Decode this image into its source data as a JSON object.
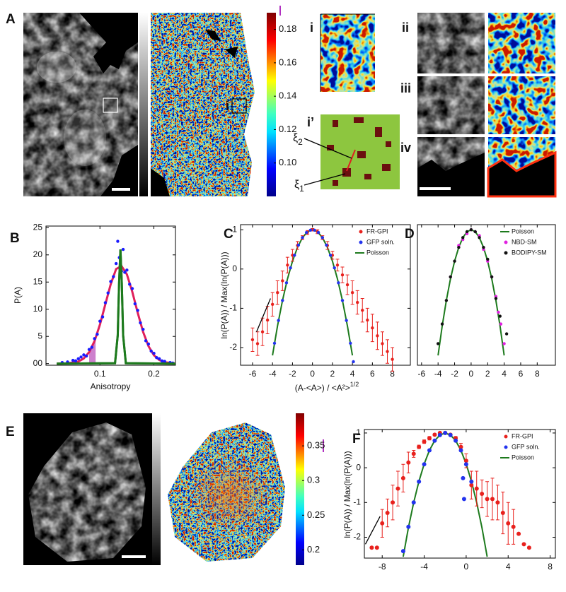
{
  "figure": {
    "panel_A": {
      "label": "A",
      "roi_label": "i",
      "scale_lim": [
        0.08,
        0.19
      ],
      "scale_ticks": [
        0.18,
        0.16,
        0.14,
        0.12,
        {
          "value": 0.1,
          "label": "0.10"
        }
      ],
      "insets": {
        "i": "i",
        "i_prime": "i’",
        "ii": "ii",
        "iii": "iii",
        "iv": "iv"
      },
      "xi_labels": [
        {
          "symbol": "ξ",
          "subscript": "2"
        },
        {
          "symbol": "ξ",
          "subscript": "1"
        }
      ]
    },
    "panel_E": {
      "label": "E",
      "scale_lim": [
        0.178,
        0.397
      ],
      "scale_ticks": [
        0.35,
        0.3,
        0.25,
        0.2
      ]
    }
  },
  "chart_data": [
    {
      "panel_label": "B",
      "type": "scatter",
      "xlabel": "Anisotropy",
      "ylabel": "P(A)",
      "xlim": [
        0,
        0.24
      ],
      "ylim": [
        -0.3,
        25.3
      ],
      "xticks": [
        0.1,
        0.2
      ],
      "yticks": [
        {
          "value": 0,
          "label": "00"
        },
        5,
        10,
        15,
        20,
        25
      ],
      "series": [
        {
          "type": "scatter",
          "color": "#1a1aff",
          "x": [
            0.03,
            0.04,
            0.05,
            0.055,
            0.06,
            0.065,
            0.07,
            0.075,
            0.08,
            0.085,
            0.09,
            0.095,
            0.1,
            0.105,
            0.11,
            0.115,
            0.12,
            0.125,
            0.13,
            0.133,
            0.136,
            0.14,
            0.143,
            0.146,
            0.15,
            0.155,
            0.16,
            0.165,
            0.17,
            0.175,
            0.18,
            0.185,
            0.19,
            0.195,
            0.2,
            0.205,
            0.21,
            0.215,
            0.22,
            0.23,
            0.235
          ],
          "values": [
            0.2,
            0.3,
            0.6,
            0.5,
            0.9,
            1.2,
            1.6,
            1.4,
            2.6,
            3.0,
            4.6,
            5.4,
            7.8,
            8.6,
            11.2,
            13.0,
            15.1,
            16.0,
            18.4,
            22.5,
            19.5,
            17.0,
            21.0,
            16.8,
            17.2,
            14.6,
            13.8,
            11.0,
            9.8,
            7.5,
            6.3,
            4.2,
            3.6,
            2.3,
            1.9,
            1.1,
            0.9,
            0.5,
            0.4,
            0.2,
            0.1
          ]
        },
        {
          "type": "line",
          "color": "#e0205a",
          "x": [
            0.02,
            0.04,
            0.06,
            0.07,
            0.08,
            0.09,
            0.1,
            0.11,
            0.12,
            0.13,
            0.14,
            0.15,
            0.16,
            0.17,
            0.18,
            0.19,
            0.2,
            0.21,
            0.22,
            0.24
          ],
          "values": [
            0,
            0.04,
            0.37,
            0.94,
            2.1,
            4.14,
            7.17,
            10.9,
            14.6,
            17.4,
            17.95,
            16.4,
            13.2,
            9.37,
            5.84,
            3.21,
            1.55,
            0.66,
            0.25,
            0.02
          ]
        },
        {
          "type": "line",
          "color": "#1d7a1d",
          "x": [
            0.02,
            0.128,
            0.133,
            0.1355,
            0.138,
            0.1405,
            0.143,
            0.148,
            0.24
          ],
          "values": [
            0,
            0.08,
            5.2,
            14.8,
            21,
            14.8,
            5.2,
            0.08,
            0
          ]
        }
      ],
      "shade": {
        "x": [
          0.08,
          0.092
        ],
        "color": "#c46ac4"
      }
    },
    {
      "panel_label": "C",
      "type": "scatter",
      "xlabel": {
        "text": "(A-<A>) / <A²>",
        "superscript": "1/2"
      },
      "ylabel": "ln(P(A)) / Max(ln(P(A)))",
      "xlim": [
        -7.2,
        9.8
      ],
      "ylim": [
        -2.45,
        1.13
      ],
      "xticks": [
        -6,
        -4,
        -2,
        0,
        2,
        4,
        6,
        8
      ],
      "yticks": [
        -2,
        -1,
        0,
        1
      ],
      "legend": "upper right",
      "series": [
        {
          "name": "FR-GPI",
          "type": "scatter",
          "color": "#e8211d",
          "x": [
            -6,
            -5.5,
            -5,
            -4.5,
            -4,
            -3.5,
            -3,
            -2.5,
            -2,
            -1.5,
            -1,
            -0.5,
            0,
            0.5,
            1,
            1.5,
            2,
            2.5,
            3,
            3.5,
            4,
            4.5,
            5,
            5.5,
            6,
            6.5,
            7,
            7.5,
            8
          ],
          "values": [
            -1.8,
            -1.9,
            -1.6,
            -1.3,
            -0.9,
            -0.6,
            -0.3,
            0.1,
            0.35,
            0.6,
            0.8,
            0.93,
            1,
            0.95,
            0.8,
            0.6,
            0.35,
            0.1,
            -0.15,
            -0.4,
            -0.6,
            -0.85,
            -1.05,
            -1.3,
            -1.5,
            -1.7,
            -1.9,
            -2.1,
            -2.3
          ],
          "errors": [
            0.3,
            0.3,
            0.35,
            0.35,
            0.3,
            0.3,
            0.25,
            0.2,
            0.15,
            0.1,
            0.05,
            0.05,
            0.03,
            0.05,
            0.05,
            0.1,
            0.1,
            0.15,
            0.2,
            0.25,
            0.3,
            0.3,
            0.3,
            0.3,
            0.35,
            0.35,
            0.3,
            0.3,
            0.3
          ]
        },
        {
          "name": "GFP soln.",
          "type": "scatter",
          "color": "#2233ee",
          "x": [
            -3.8,
            -3.4,
            -3,
            -2.6,
            -2.2,
            -1.8,
            -1.4,
            -1,
            -0.6,
            -0.2,
            0.2,
            0.6,
            1,
            1.4,
            1.8,
            2.2,
            2.6,
            3,
            3.4,
            3.8,
            4.1
          ],
          "values": [
            -1.89,
            -1.31,
            -0.8,
            -0.35,
            0.03,
            0.35,
            0.61,
            0.8,
            0.93,
            0.99,
            0.99,
            0.93,
            0.8,
            0.61,
            0.35,
            0.03,
            -0.35,
            -0.8,
            -1.31,
            -1.89,
            -2.36
          ]
        },
        {
          "name": "Poisson",
          "type": "line",
          "color": "#1d7a1d",
          "x": [
            -4,
            -3.5,
            -3,
            -2.5,
            -2,
            -1.5,
            -1,
            -0.5,
            0,
            0.5,
            1,
            1.5,
            2,
            2.5,
            3,
            3.5,
            4
          ],
          "values": [
            -2.2,
            -1.45,
            -0.8,
            -0.25,
            0.2,
            0.55,
            0.8,
            0.95,
            1,
            0.95,
            0.8,
            0.55,
            0.2,
            -0.25,
            -0.8,
            -1.45,
            -2.2
          ]
        }
      ],
      "guide": {
        "x": [
          -5.6,
          -4.2
        ],
        "values": [
          -1.6,
          -0.75
        ]
      }
    },
    {
      "panel_label": "D",
      "type": "scatter",
      "xlim": [
        -6.5,
        10.2
      ],
      "ylim": [
        -2.45,
        1.13
      ],
      "xticks": [
        -6,
        -4,
        -2,
        0,
        2,
        4,
        6,
        8
      ],
      "legend": "upper right",
      "series": [
        {
          "name": "Poisson",
          "type": "line",
          "color": "#1d7a1d",
          "x": [
            -4,
            -3.5,
            -3,
            -2.5,
            -2,
            -1.5,
            -1,
            -0.5,
            0,
            0.5,
            1,
            1.5,
            2,
            2.5,
            3,
            3.5,
            4
          ],
          "values": [
            -2.2,
            -1.45,
            -0.8,
            -0.25,
            0.2,
            0.55,
            0.8,
            0.95,
            1,
            0.95,
            0.8,
            0.55,
            0.2,
            -0.25,
            -0.8,
            -1.45,
            -2.2
          ]
        },
        {
          "name": "NBD-SM",
          "type": "scatter",
          "color": "#e020e0",
          "x": [
            -2.5,
            -1.5,
            -1,
            -0.5,
            0,
            0.5,
            1,
            1.5,
            2,
            2.5,
            3,
            3.3,
            3.6,
            4
          ],
          "values": [
            -0.2,
            0.6,
            0.75,
            0.9,
            1,
            0.95,
            0.85,
            0.5,
            0.2,
            -0.2,
            -0.7,
            -1.1,
            -1.4,
            -1.9
          ]
        },
        {
          "name": "BODIPY-SM",
          "type": "scatter",
          "color": "#111111",
          "x": [
            -4,
            -3.5,
            -3,
            -2.5,
            -2,
            -1.5,
            -1,
            -0.5,
            0,
            0.5,
            1,
            1.5,
            2,
            2.5,
            3,
            3.5,
            4.3
          ],
          "values": [
            -1.9,
            -1.4,
            -0.8,
            -0.2,
            0.2,
            0.55,
            0.8,
            0.95,
            1,
            0.95,
            0.8,
            0.55,
            0.25,
            -0.2,
            -0.75,
            -1.2,
            -1.65
          ]
        }
      ]
    },
    {
      "panel_label": "F",
      "type": "scatter",
      "ylabel": "ln(P(A)) / Max(ln(P(A)))",
      "xlim": [
        -9.7,
        8.5
      ],
      "ylim": [
        -2.6,
        1.1
      ],
      "xticks": [
        -8,
        -4,
        0,
        4,
        8
      ],
      "yticks": [
        -2,
        -1,
        0,
        1
      ],
      "legend": "upper right",
      "series": [
        {
          "name": "FR-GPI",
          "type": "scatter",
          "color": "#e8211d",
          "x": [
            -9,
            -8.5,
            -8,
            -7.5,
            -7,
            -6.5,
            -6,
            -5.5,
            -5,
            -4.5,
            -4,
            -3.5,
            -3,
            -2.5,
            -2,
            -1.5,
            -1,
            -0.5,
            0,
            0.5,
            1,
            1.5,
            2,
            2.5,
            3,
            3.5,
            4,
            4.5,
            5,
            5.5,
            6
          ],
          "values": [
            -2.3,
            -2.3,
            -1.6,
            -1.3,
            -1.0,
            -0.6,
            -0.3,
            0.15,
            0.4,
            0.6,
            0.75,
            0.85,
            0.95,
            1.0,
            1.0,
            0.95,
            0.85,
            0.6,
            0.2,
            -0.5,
            -0.6,
            -0.75,
            -0.9,
            -0.9,
            -1.0,
            -1.3,
            -1.6,
            -1.7,
            -1.9,
            -2.2,
            -2.3
          ],
          "errors": [
            0,
            0,
            0.4,
            0.4,
            0.5,
            0.5,
            0.4,
            0.3,
            0.1,
            0.05,
            0.05,
            0.05,
            0.03,
            0.03,
            0.03,
            0.03,
            0.05,
            0.1,
            0.2,
            0.4,
            0.5,
            0.4,
            0.5,
            0.6,
            0.5,
            0.6,
            0.6,
            0.5,
            0,
            0,
            0
          ]
        },
        {
          "name": "GFP soln.",
          "type": "scatter",
          "color": "#2233ee",
          "x": [
            -6,
            -5.5,
            -5,
            -4.5,
            -4,
            -3.5,
            -3,
            -2.5,
            -2,
            -1.5,
            -1,
            -0.5,
            -0.3,
            -0.2,
            0,
            0.5
          ],
          "values": [
            -2.4,
            -1.7,
            -1.0,
            -0.4,
            0.1,
            0.5,
            0.78,
            0.94,
            1,
            0.94,
            0.78,
            0.5,
            -0.3,
            -0.9,
            0.1,
            -0.4
          ]
        },
        {
          "name": "Poisson",
          "type": "line",
          "color": "#1d7a1d",
          "x": [
            -6,
            -5.5,
            -5,
            -4.5,
            -4,
            -3.5,
            -3,
            -2.5,
            -2,
            -1.5,
            -1,
            -0.5,
            0,
            0.5,
            1,
            1.5,
            2
          ],
          "values": [
            -2.56,
            -1.72,
            -1.0,
            -0.39,
            0.11,
            0.5,
            0.78,
            0.94,
            1,
            0.94,
            0.78,
            0.5,
            0.11,
            -0.39,
            -1.0,
            -1.72,
            -2.56
          ]
        }
      ],
      "guide": {
        "x": [
          -9.6,
          -8.2
        ],
        "values": [
          -2.2,
          -1.4
        ]
      }
    }
  ]
}
